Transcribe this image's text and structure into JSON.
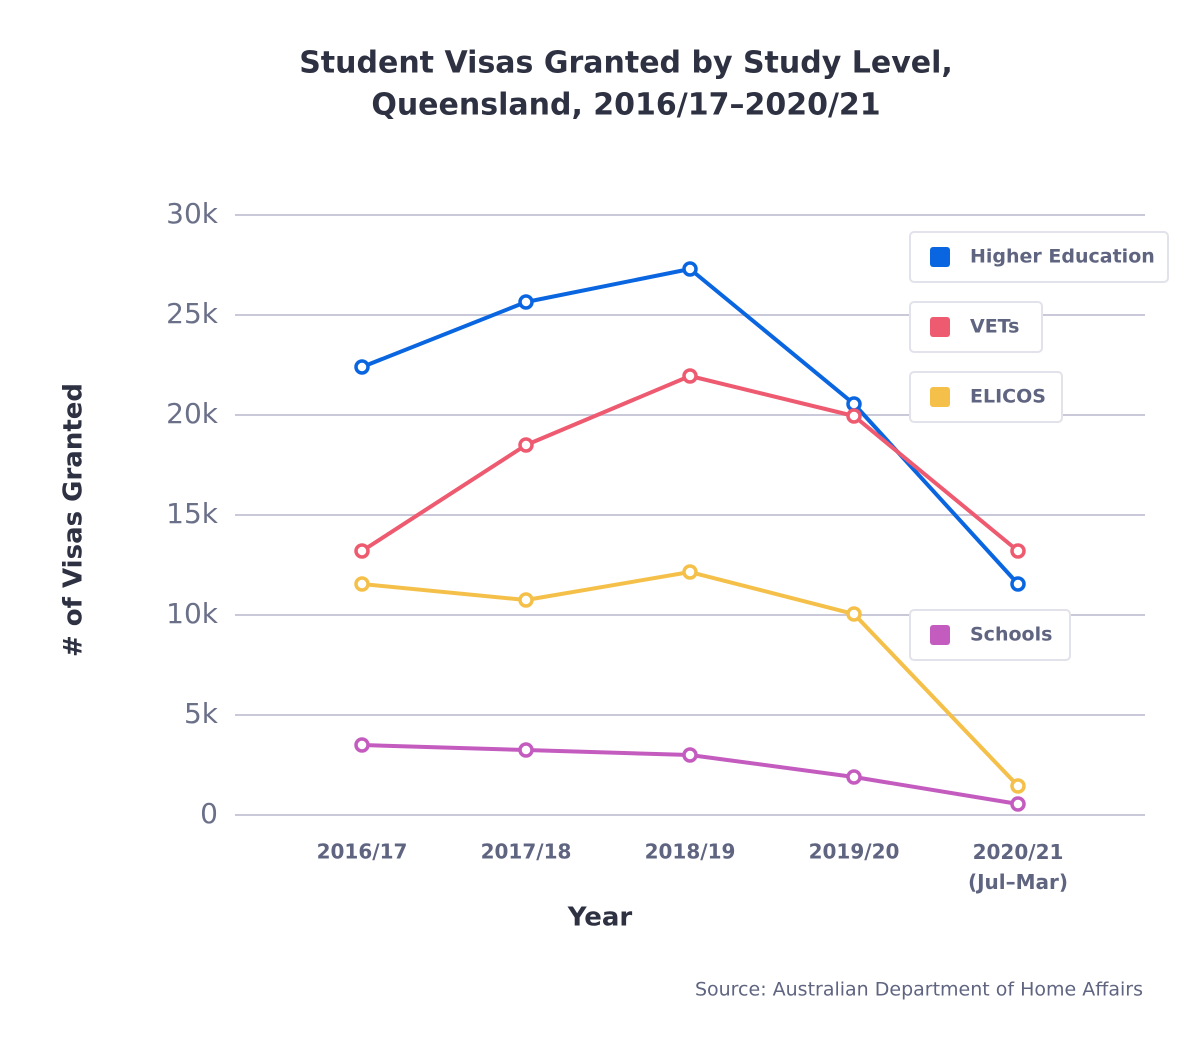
{
  "chart_data": {
    "type": "line",
    "title": "Student Visas Granted by Study Level,",
    "subtitle": "Queensland, 2016/17–2020/21",
    "x_label": "Year",
    "y_label": "# of Visas Granted",
    "source": "Source: Australian Department of Home Affairs",
    "categories": [
      "2016/17",
      "2017/18",
      "2018/19",
      "2019/20",
      "2020/21\n(Jul–Mar)"
    ],
    "series": [
      {
        "name": "Higher Education",
        "color": "#0a66e0",
        "values": [
          22400,
          25650,
          27300,
          20550,
          11550
        ]
      },
      {
        "name": "VETs",
        "color": "#ee5a6f",
        "values": [
          13200,
          18500,
          21950,
          19950,
          13200
        ]
      },
      {
        "name": "ELICOS",
        "color": "#f5c04a",
        "values": [
          11550,
          10750,
          12150,
          10050,
          1450
        ]
      },
      {
        "name": "Schools",
        "color": "#c45cc0",
        "values": [
          3500,
          3250,
          3000,
          1900,
          550
        ]
      }
    ],
    "ylim": [
      0,
      30000
    ],
    "yticks": [
      0,
      {
        "value": 5000,
        "label": "5k"
      },
      {
        "value": 10000,
        "label": "10k"
      },
      {
        "value": 15000,
        "label": "15k"
      },
      {
        "value": 20000,
        "label": "20k"
      },
      {
        "value": 25000,
        "label": "25k"
      },
      {
        "value": 30000,
        "label": "30k"
      }
    ],
    "grid": true
  }
}
